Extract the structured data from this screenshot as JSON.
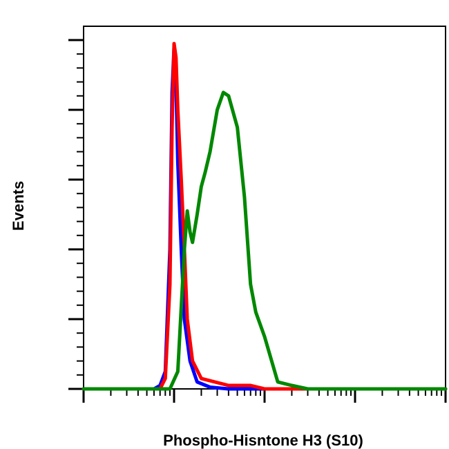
{
  "chart_data": {
    "type": "line",
    "title": "",
    "xlabel": "Phospho-Hisntone H3 (S10)",
    "ylabel": "Events",
    "x_scale": "log",
    "xlim": [
      1,
      10000
    ],
    "ylim": [
      0,
      100
    ],
    "grid": false,
    "legend": "none",
    "series": [
      {
        "color": "#0000ff",
        "points": [
          [
            6,
            0
          ],
          [
            7,
            1
          ],
          [
            8,
            5
          ],
          [
            9,
            40
          ],
          [
            9.5,
            85
          ],
          [
            10,
            98
          ],
          [
            10.5,
            88
          ],
          [
            11,
            65
          ],
          [
            12,
            40
          ],
          [
            13,
            20
          ],
          [
            15,
            8
          ],
          [
            18,
            2
          ],
          [
            25,
            0.5
          ],
          [
            40,
            0
          ]
        ]
      },
      {
        "color": "#ff0000",
        "points": [
          [
            7,
            0
          ],
          [
            8,
            3
          ],
          [
            9,
            30
          ],
          [
            9.5,
            75
          ],
          [
            10,
            99
          ],
          [
            10.5,
            95
          ],
          [
            11,
            80
          ],
          [
            12,
            60
          ],
          [
            13,
            40
          ],
          [
            14,
            20
          ],
          [
            16,
            8
          ],
          [
            20,
            3
          ],
          [
            40,
            1
          ],
          [
            70,
            1
          ],
          [
            100,
            0
          ]
        ]
      },
      {
        "color": "#008800",
        "points": [
          [
            9,
            0
          ],
          [
            11,
            5
          ],
          [
            13,
            40
          ],
          [
            14,
            51
          ],
          [
            15,
            45
          ],
          [
            16,
            42
          ],
          [
            18,
            50
          ],
          [
            20,
            58
          ],
          [
            22,
            62
          ],
          [
            25,
            68
          ],
          [
            30,
            80
          ],
          [
            35,
            85
          ],
          [
            40,
            84
          ],
          [
            50,
            75
          ],
          [
            60,
            55
          ],
          [
            70,
            30
          ],
          [
            80,
            22
          ],
          [
            100,
            15
          ],
          [
            140,
            2
          ],
          [
            200,
            1
          ],
          [
            300,
            0
          ]
        ]
      }
    ]
  }
}
